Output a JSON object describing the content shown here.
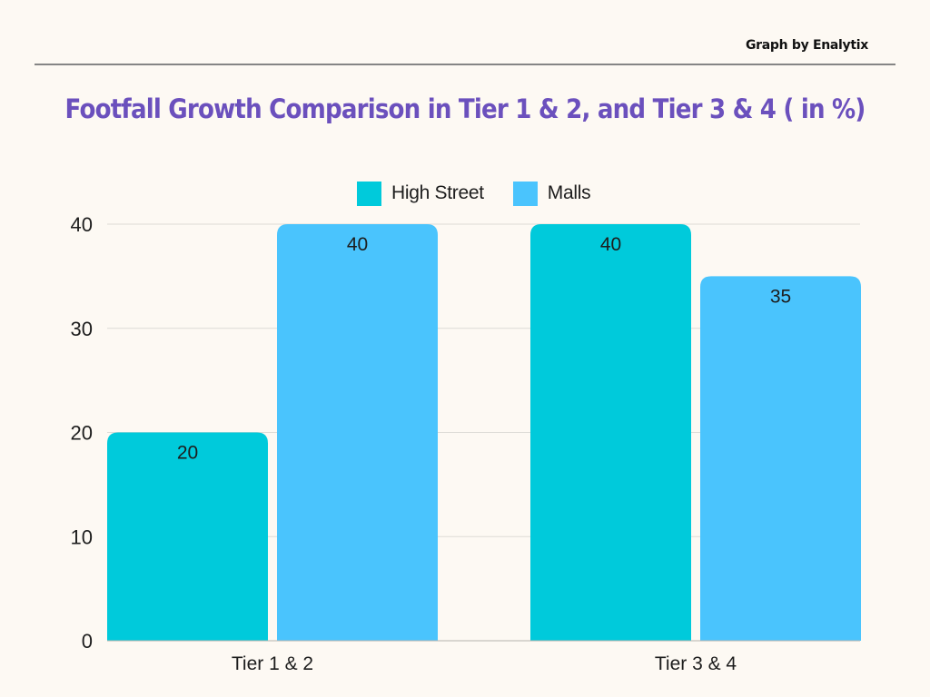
{
  "header": {
    "credit": "Graph by Enalytix"
  },
  "colors": {
    "background": "#fdf9f3",
    "title": "#6b50bd",
    "high_street": "#00cadb",
    "malls": "#4ac4fd",
    "gridline": "#dddbd6",
    "rule": "#858585"
  },
  "chart_data": {
    "type": "bar",
    "title": "Footfall Growth Comparison in Tier 1 & 2, and Tier 3 & 4 ( in %)",
    "xlabel": "",
    "ylabel": "",
    "categories": [
      "Tier 1 & 2",
      "Tier 3 & 4"
    ],
    "series": [
      {
        "name": "High Street",
        "color": "#00cadb",
        "values": [
          20,
          40
        ]
      },
      {
        "name": "Malls",
        "color": "#4ac4fd",
        "values": [
          40,
          35
        ]
      }
    ],
    "ylim": [
      0,
      40
    ],
    "yticks": [
      0,
      10,
      20,
      30,
      40
    ],
    "grid": true,
    "legend": "top-center",
    "data_labels": true
  }
}
